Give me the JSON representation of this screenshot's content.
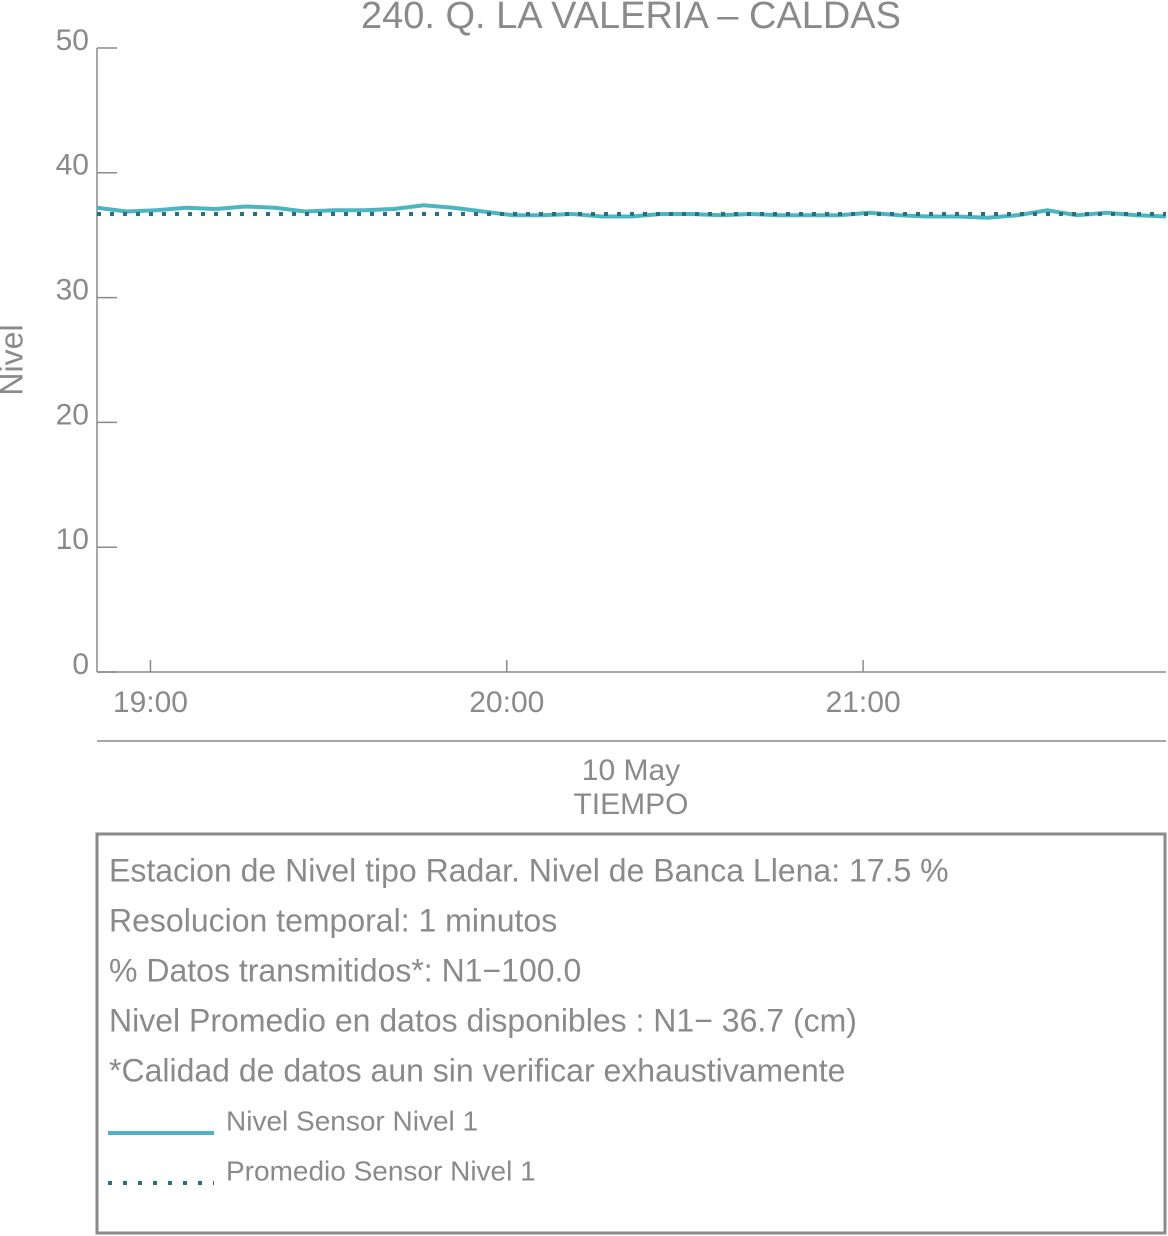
{
  "chart_data": {
    "type": "line",
    "title": "240. Q. LA VALERIA – CALDAS",
    "ylabel": "Nivel",
    "xlabel": "TIEMPO",
    "date_label": "10 May",
    "x": [
      "18:51",
      "18:56",
      "19:01",
      "19:06",
      "19:11",
      "19:16",
      "19:21",
      "19:26",
      "19:31",
      "19:36",
      "19:41",
      "19:46",
      "19:51",
      "19:56",
      "20:01",
      "20:06",
      "20:11",
      "20:16",
      "20:21",
      "20:26",
      "20:31",
      "20:36",
      "20:41",
      "20:46",
      "20:51",
      "20:56",
      "21:01",
      "21:06",
      "21:11",
      "21:16",
      "21:21",
      "21:26",
      "21:31",
      "21:36",
      "21:41",
      "21:46",
      "21:51"
    ],
    "xlim": [
      "18:51",
      "21:51"
    ],
    "xticks": [
      "19:00",
      "20:00",
      "21:00"
    ],
    "ylim": [
      0,
      50
    ],
    "yticks": [
      0,
      10,
      20,
      30,
      40,
      50
    ],
    "series": [
      {
        "name": "Nivel Sensor Nivel 1",
        "color": "#4bb5c1",
        "dash": "solid",
        "values": [
          37.2,
          36.9,
          37.0,
          37.2,
          37.1,
          37.3,
          37.2,
          36.9,
          37.0,
          37.0,
          37.1,
          37.4,
          37.2,
          36.9,
          36.6,
          36.6,
          36.7,
          36.5,
          36.5,
          36.7,
          36.7,
          36.6,
          36.7,
          36.6,
          36.6,
          36.6,
          36.8,
          36.6,
          36.5,
          36.5,
          36.4,
          36.6,
          37.0,
          36.6,
          36.8,
          36.6,
          36.5
        ]
      },
      {
        "name": "Promedio Sensor Nivel 1",
        "color": "#2a6f80",
        "dash": "dotted",
        "values": [
          36.7,
          36.7,
          36.7,
          36.7,
          36.7,
          36.7,
          36.7,
          36.7,
          36.7,
          36.7,
          36.7,
          36.7,
          36.7,
          36.7,
          36.7,
          36.7,
          36.7,
          36.7,
          36.7,
          36.7,
          36.7,
          36.7,
          36.7,
          36.7,
          36.7,
          36.7,
          36.7,
          36.7,
          36.7,
          36.7,
          36.7,
          36.7,
          36.7,
          36.7,
          36.7,
          36.7,
          36.7
        ]
      }
    ],
    "info": [
      "Estacion de Nivel tipo Radar. Nivel de Banca Llena: 17.5 %",
      "Resolucion temporal: 1 minutos",
      "% Datos transmitidos*: N1−100.0",
      "Nivel Promedio en datos disponibles : N1− 36.7 (cm)",
      "*Calidad de datos aun sin verificar exhaustivamente"
    ]
  }
}
